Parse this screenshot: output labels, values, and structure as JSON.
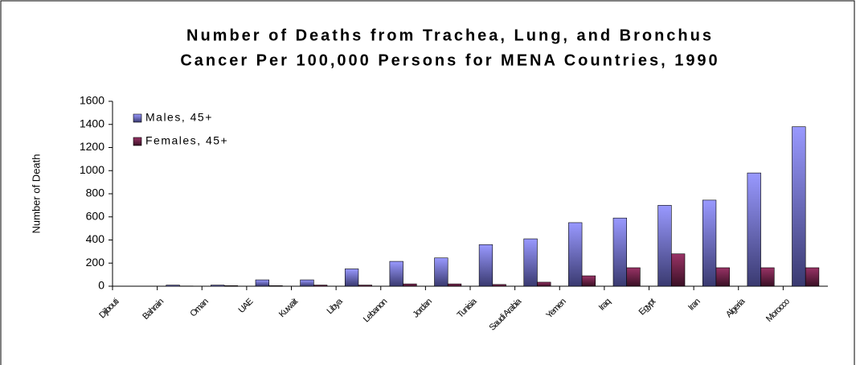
{
  "chart_data": {
    "type": "bar",
    "title": "Number of Deaths from Trachea, Lung, and Bronchus",
    "subtitle": "Cancer Per 100,000 Persons for MENA Countries, 1990",
    "y_label": "Number of Death",
    "categories": [
      "Djibouti",
      "Bahrain",
      "Oman",
      "UAE",
      "Kuwait",
      "Libya",
      "Lebanon",
      "Jordan",
      "Tunisia",
      "Saudi Arabia",
      "Yemen",
      "Iraq",
      "Egypt",
      "Iran",
      "Algeria",
      "Morocco"
    ],
    "series": [
      {
        "name": "Males, 45+",
        "color": "#9999ff",
        "values": [
          0,
          10,
          10,
          55,
          55,
          150,
          215,
          245,
          360,
          410,
          550,
          590,
          700,
          745,
          980,
          1380
        ]
      },
      {
        "name": "Females, 45+",
        "color": "#993366",
        "values": [
          0,
          2,
          5,
          5,
          10,
          10,
          20,
          20,
          15,
          35,
          90,
          160,
          280,
          160,
          160,
          160
        ]
      }
    ],
    "ylim": [
      0,
      1600
    ],
    "yticks": [
      0,
      200,
      400,
      600,
      800,
      1000,
      1200,
      1400,
      1600
    ],
    "grid": false,
    "legend": "top-left"
  }
}
